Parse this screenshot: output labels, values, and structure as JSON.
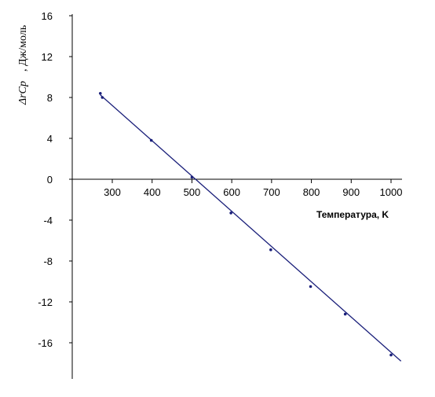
{
  "chart_data": {
    "type": "line",
    "xlabel": "Температура, K",
    "ylabel_main": "ΔrCp",
    "ylabel_unit": ", Дж/моль",
    "x_ticks": [
      300,
      400,
      500,
      600,
      700,
      800,
      900,
      1000
    ],
    "y_ticks": [
      16,
      12,
      8,
      4,
      0,
      -4,
      -8,
      -12,
      -16
    ],
    "xlim": [
      220,
      1020
    ],
    "ylim": [
      -19,
      17
    ],
    "grid": false,
    "legend": "none",
    "line_color": "#1a1f7a",
    "series": [
      {
        "values": [
          {
            "x": 270,
            "y": 8.4
          },
          {
            "x": 275,
            "y": 8.0
          },
          {
            "x": 398,
            "y": 3.8
          },
          {
            "x": 500,
            "y": 0.2
          },
          {
            "x": 598,
            "y": -3.3
          },
          {
            "x": 698,
            "y": -6.9
          },
          {
            "x": 798,
            "y": -10.5
          },
          {
            "x": 885,
            "y": -13.2
          },
          {
            "x": 1000,
            "y": -17.2
          }
        ]
      }
    ],
    "trend_line": {
      "x": [
        270,
        1025
      ],
      "y": [
        8.25,
        -17.8
      ]
    }
  }
}
